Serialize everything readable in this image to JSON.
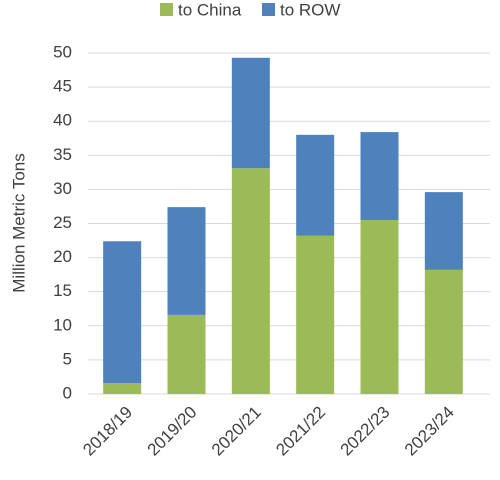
{
  "chart_data": {
    "type": "stacked_bar",
    "y_label": "Million Metric Tons",
    "categories": [
      "2018/19",
      "2019/20",
      "2020/21",
      "2021/22",
      "2022/23",
      "2023/24"
    ],
    "series": [
      {
        "name": "to China",
        "color": "#9bbb59",
        "values": [
          1.6,
          11.6,
          33.1,
          23.2,
          25.5,
          18.2
        ]
      },
      {
        "name": "to ROW",
        "color": "#4f81bd",
        "values": [
          20.8,
          15.8,
          16.2,
          14.8,
          12.9,
          11.4
        ]
      }
    ],
    "ylim": [
      0,
      50
    ],
    "yticks": [
      0,
      5,
      10,
      15,
      20,
      25,
      30,
      35,
      40,
      45,
      50
    ],
    "grid": true
  }
}
